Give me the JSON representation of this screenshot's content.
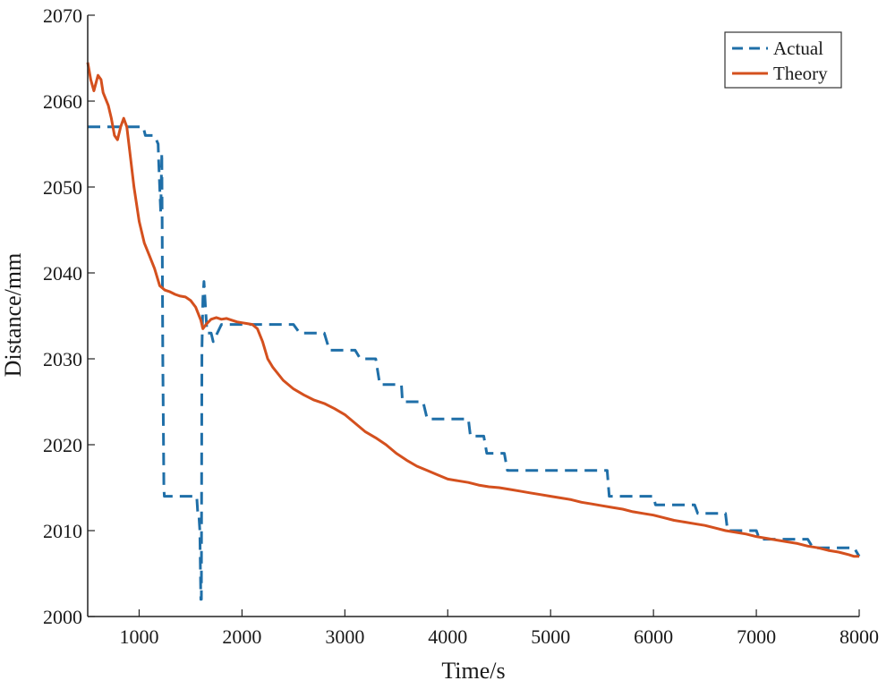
{
  "chart_data": {
    "type": "line",
    "title": "",
    "xlabel": "Time/s",
    "ylabel": "Distance/mm",
    "xlim": [
      500,
      8000
    ],
    "ylim": [
      2000,
      2070
    ],
    "xticks": [
      1000,
      2000,
      3000,
      4000,
      5000,
      6000,
      7000,
      8000
    ],
    "yticks": [
      2000,
      2010,
      2020,
      2030,
      2040,
      2050,
      2060,
      2070
    ],
    "grid": false,
    "legend_position": "top-right",
    "colors": {
      "actual": "#1f6fa8",
      "theory": "#d4501e"
    },
    "series": [
      {
        "name": "Actual",
        "style": "dashed",
        "x": [
          500,
          1000,
          1040,
          1060,
          1150,
          1185,
          1190,
          1210,
          1220,
          1230,
          1240,
          1245,
          1250,
          1300,
          1560,
          1570,
          1580,
          1590,
          1600,
          1605,
          1610,
          1620,
          1630,
          1660,
          1700,
          1720,
          1800,
          2500,
          2560,
          2800,
          2850,
          3100,
          3150,
          3300,
          3340,
          3550,
          3560,
          3760,
          3800,
          4200,
          4220,
          4350,
          4380,
          4550,
          4580,
          5550,
          5570,
          6000,
          6020,
          6400,
          6430,
          6700,
          6720,
          7000,
          7030,
          7500,
          7550,
          7800,
          7830,
          7950,
          8000
        ],
        "y": [
          2057,
          2057,
          2057,
          2056,
          2056,
          2055,
          2053,
          2047,
          2054,
          2030,
          2015,
          2014,
          2014,
          2014,
          2014,
          2012,
          2012,
          2010,
          2002,
          2002,
          2031,
          2037,
          2039,
          2033,
          2033,
          2032,
          2034,
          2034,
          2033,
          2033,
          2031,
          2031,
          2030,
          2030,
          2027,
          2027,
          2025,
          2025,
          2023,
          2023,
          2021,
          2021,
          2019,
          2019,
          2017,
          2017,
          2014,
          2014,
          2013,
          2013,
          2012,
          2012,
          2010,
          2010,
          2009,
          2009,
          2008,
          2008,
          2008,
          2008,
          2007
        ],
        "note_breaks": [
          1230,
          1620
        ]
      },
      {
        "name": "Theory",
        "style": "solid",
        "x": [
          500,
          530,
          560,
          600,
          630,
          650,
          700,
          730,
          760,
          790,
          820,
          850,
          880,
          900,
          950,
          1000,
          1050,
          1100,
          1150,
          1200,
          1250,
          1300,
          1350,
          1400,
          1450,
          1500,
          1550,
          1600,
          1620,
          1650,
          1700,
          1750,
          1800,
          1850,
          1900,
          1950,
          2000,
          2050,
          2100,
          2150,
          2200,
          2250,
          2300,
          2400,
          2500,
          2600,
          2700,
          2800,
          2900,
          3000,
          3100,
          3200,
          3300,
          3400,
          3500,
          3600,
          3700,
          3800,
          3900,
          4000,
          4100,
          4200,
          4300,
          4400,
          4500,
          4600,
          4700,
          4800,
          4900,
          5000,
          5100,
          5200,
          5300,
          5400,
          5500,
          5600,
          5700,
          5800,
          5900,
          6000,
          6100,
          6200,
          6300,
          6400,
          6500,
          6600,
          6700,
          6800,
          6900,
          7000,
          7100,
          7200,
          7300,
          7400,
          7500,
          7600,
          7700,
          7800,
          7900,
          7950,
          8000
        ],
        "y": [
          2064.5,
          2062.5,
          2061.2,
          2063,
          2062.5,
          2061,
          2059.5,
          2058,
          2056,
          2055.5,
          2057,
          2058,
          2057,
          2055,
          2050,
          2046,
          2043.5,
          2042,
          2040.5,
          2038.5,
          2038,
          2037.8,
          2037.5,
          2037.3,
          2037.2,
          2036.8,
          2036,
          2034.5,
          2033.5,
          2034,
          2034.6,
          2034.8,
          2034.6,
          2034.7,
          2034.5,
          2034.3,
          2034.2,
          2034.1,
          2034,
          2033.5,
          2032,
          2030,
          2029,
          2027.5,
          2026.5,
          2025.8,
          2025.2,
          2024.8,
          2024.2,
          2023.5,
          2022.5,
          2021.5,
          2020.8,
          2020,
          2019,
          2018.2,
          2017.5,
          2017,
          2016.5,
          2016,
          2015.8,
          2015.6,
          2015.3,
          2015.1,
          2015,
          2014.8,
          2014.6,
          2014.4,
          2014.2,
          2014,
          2013.8,
          2013.6,
          2013.3,
          2013.1,
          2012.9,
          2012.7,
          2012.5,
          2012.2,
          2012,
          2011.8,
          2011.5,
          2011.2,
          2011,
          2010.8,
          2010.6,
          2010.3,
          2010,
          2009.8,
          2009.6,
          2009.3,
          2009.1,
          2008.9,
          2008.7,
          2008.5,
          2008.2,
          2008,
          2007.7,
          2007.5,
          2007.2,
          2007,
          2007
        ]
      }
    ]
  }
}
